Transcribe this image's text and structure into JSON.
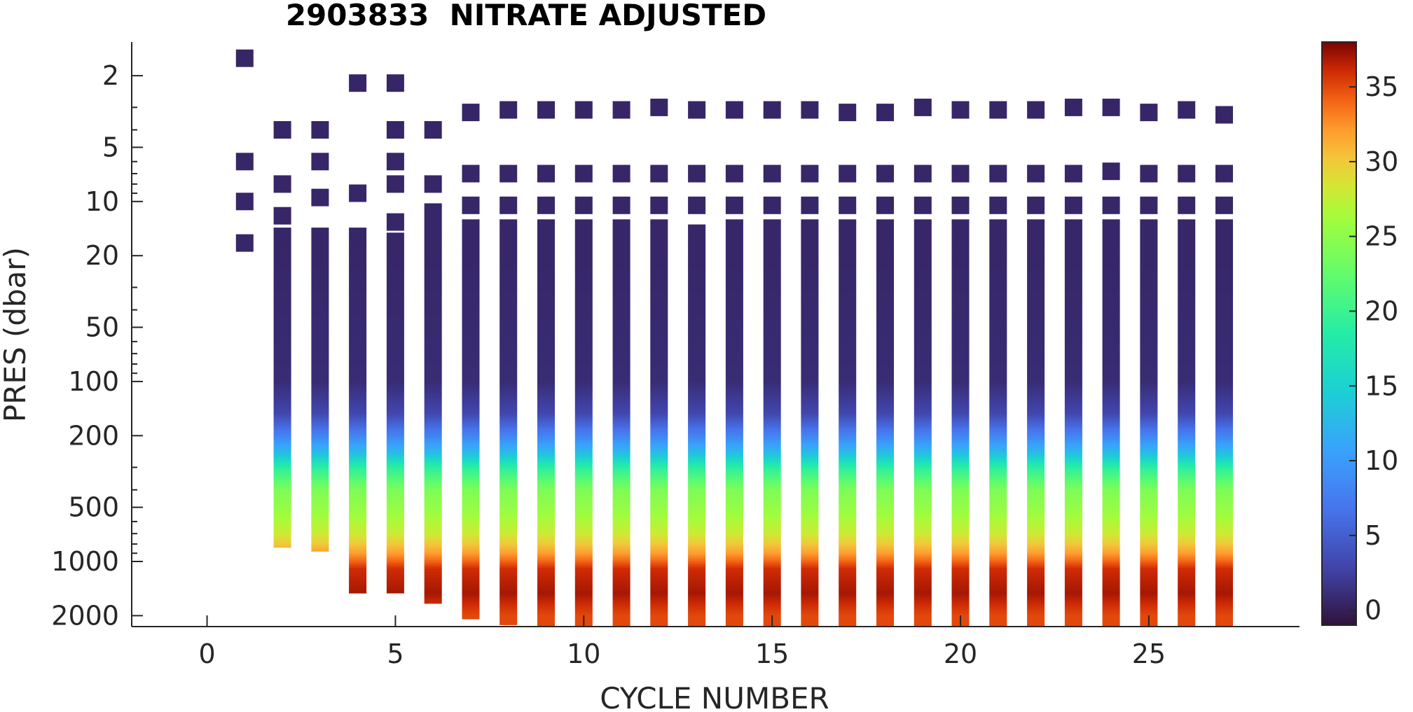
{
  "chart_data": {
    "type": "heatmap",
    "title": "2903833  NITRATE ADJUSTED",
    "xlabel": "CYCLE NUMBER",
    "ylabel": "PRES (dbar)",
    "xlim": [
      -2,
      29
    ],
    "ylim": [
      1.3,
      2300
    ],
    "y_scale": "log",
    "y_reversed": true,
    "x_ticks": [
      0,
      5,
      10,
      15,
      20,
      25
    ],
    "y_ticks": [
      2,
      5,
      10,
      20,
      50,
      100,
      200,
      500,
      1000,
      2000
    ],
    "colorbar": {
      "clim": [
        -1,
        38
      ],
      "ticks": [
        0,
        5,
        10,
        15,
        20,
        25,
        30,
        35
      ],
      "colormap": "turbo",
      "placement": "right"
    },
    "grid": false,
    "profiles": [
      {
        "cycle": 1,
        "discrete": [
          1.6,
          6,
          10,
          17
        ],
        "deep_start": null,
        "max_depth": 17
      },
      {
        "cycle": 2,
        "discrete": [
          4,
          8,
          12
        ],
        "deep_start": 15,
        "max_depth": 780
      },
      {
        "cycle": 3,
        "discrete": [
          4,
          6,
          9.5
        ],
        "deep_start": 15,
        "max_depth": 820
      },
      {
        "cycle": 4,
        "discrete": [
          2.2,
          9
        ],
        "deep_start": 15,
        "max_depth": 1400
      },
      {
        "cycle": 5,
        "discrete": [
          2.2,
          4,
          6,
          8,
          13
        ],
        "deep_start": 16,
        "max_depth": 1400
      },
      {
        "cycle": 6,
        "discrete": [
          4,
          8
        ],
        "deep_start": 11,
        "max_depth": 1600
      },
      {
        "cycle": 7,
        "discrete": [
          3.2,
          7,
          10.5
        ],
        "deep_start": 13.5,
        "max_depth": 1950
      },
      {
        "cycle": 8,
        "discrete": [
          3.1,
          7,
          10.5
        ],
        "deep_start": 13.5,
        "max_depth": 2100
      },
      {
        "cycle": 9,
        "discrete": [
          3.1,
          7,
          10.5
        ],
        "deep_start": 13.5,
        "max_depth": 2200
      },
      {
        "cycle": 10,
        "discrete": [
          3.1,
          7,
          10.5
        ],
        "deep_start": 13.5,
        "max_depth": 2200
      },
      {
        "cycle": 11,
        "discrete": [
          3.1,
          7,
          10.5
        ],
        "deep_start": 13.5,
        "max_depth": 2200
      },
      {
        "cycle": 12,
        "discrete": [
          3.0,
          7,
          10.5
        ],
        "deep_start": 13.5,
        "max_depth": 2200
      },
      {
        "cycle": 13,
        "discrete": [
          3.1,
          7,
          10.5,
          15
        ],
        "deep_start": 18,
        "max_depth": 2200
      },
      {
        "cycle": 14,
        "discrete": [
          3.1,
          7,
          10.5
        ],
        "deep_start": 13.5,
        "max_depth": 2200
      },
      {
        "cycle": 15,
        "discrete": [
          3.1,
          7,
          10.5
        ],
        "deep_start": 13.5,
        "max_depth": 2200
      },
      {
        "cycle": 16,
        "discrete": [
          3.1,
          7,
          10.5
        ],
        "deep_start": 13.5,
        "max_depth": 2200
      },
      {
        "cycle": 17,
        "discrete": [
          3.2,
          7,
          10.5
        ],
        "deep_start": 13.5,
        "max_depth": 2200
      },
      {
        "cycle": 18,
        "discrete": [
          3.2,
          7,
          10.5
        ],
        "deep_start": 13.5,
        "max_depth": 2200
      },
      {
        "cycle": 19,
        "discrete": [
          3.0,
          7,
          10.5
        ],
        "deep_start": 13.5,
        "max_depth": 2200
      },
      {
        "cycle": 20,
        "discrete": [
          3.1,
          7,
          10.5
        ],
        "deep_start": 13.5,
        "max_depth": 2200
      },
      {
        "cycle": 21,
        "discrete": [
          3.1,
          7,
          10.5
        ],
        "deep_start": 13.5,
        "max_depth": 2200
      },
      {
        "cycle": 22,
        "discrete": [
          3.1,
          7,
          10.5
        ],
        "deep_start": 13.5,
        "max_depth": 2200
      },
      {
        "cycle": 23,
        "discrete": [
          3.0,
          7,
          10.5
        ],
        "deep_start": 13.5,
        "max_depth": 2200
      },
      {
        "cycle": 24,
        "discrete": [
          3.0,
          6.8,
          10.5
        ],
        "deep_start": 13.5,
        "max_depth": 2200
      },
      {
        "cycle": 25,
        "discrete": [
          3.2,
          7,
          10.5
        ],
        "deep_start": 13.5,
        "max_depth": 2200
      },
      {
        "cycle": 26,
        "discrete": [
          3.1,
          7,
          10.5
        ],
        "deep_start": 13.5,
        "max_depth": 2200
      },
      {
        "cycle": 27,
        "discrete": [
          3.3,
          7,
          10.5
        ],
        "deep_start": 13.5,
        "max_depth": 2200
      }
    ],
    "nitrate_profile": [
      {
        "pres": 1,
        "value": 0.5
      },
      {
        "pres": 20,
        "value": 0.6
      },
      {
        "pres": 100,
        "value": 1.0
      },
      {
        "pres": 150,
        "value": 3
      },
      {
        "pres": 200,
        "value": 8
      },
      {
        "pres": 250,
        "value": 13
      },
      {
        "pres": 300,
        "value": 19
      },
      {
        "pres": 400,
        "value": 24
      },
      {
        "pres": 550,
        "value": 26
      },
      {
        "pres": 700,
        "value": 28
      },
      {
        "pres": 900,
        "value": 32
      },
      {
        "pres": 1100,
        "value": 36
      },
      {
        "pres": 1500,
        "value": 37
      },
      {
        "pres": 2000,
        "value": 35
      }
    ]
  }
}
